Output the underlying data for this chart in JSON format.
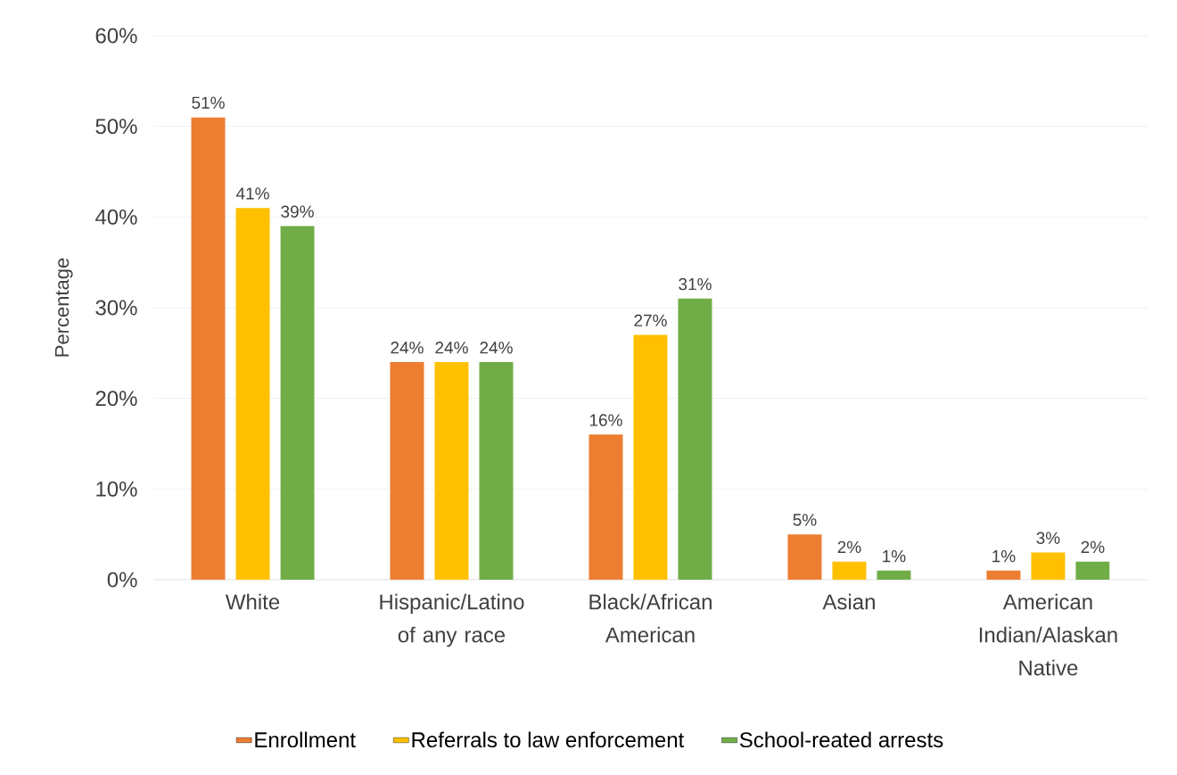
{
  "chart_data": {
    "type": "bar",
    "ylabel": "Percentage",
    "categories": [
      "White",
      "Hispanic/Latino of any race",
      "Black/African American",
      "Asian",
      "American Indian/Alaskan Native"
    ],
    "series": [
      {
        "name": "Enrollment",
        "color": "#ed7d31",
        "values": [
          51,
          24,
          16,
          5,
          1
        ],
        "value_labels": [
          "51%",
          "24%",
          "16%",
          "5%",
          "1%"
        ]
      },
      {
        "name": "Referrals to law enforcement",
        "color": "#ffc000",
        "values": [
          41,
          24,
          27,
          2,
          3
        ],
        "value_labels": [
          "41%",
          "24%",
          "27%",
          "2%",
          "3%"
        ]
      },
      {
        "name": "School-reated arrests",
        "color": "#70ad47",
        "values": [
          39,
          24,
          31,
          1,
          2
        ],
        "value_labels": [
          "39%",
          "24%",
          "31%",
          "1%",
          "2%"
        ]
      }
    ],
    "ylim": [
      0,
      60
    ],
    "yticks": [
      {
        "value": 0,
        "label": "0%"
      },
      {
        "value": 10,
        "label": "10%"
      },
      {
        "value": 20,
        "label": "20%"
      },
      {
        "value": 30,
        "label": "30%"
      },
      {
        "value": 40,
        "label": "40%"
      },
      {
        "value": 50,
        "label": "50%"
      },
      {
        "value": 60,
        "label": "60%"
      }
    ],
    "grid": "y",
    "legend": "bottom"
  }
}
